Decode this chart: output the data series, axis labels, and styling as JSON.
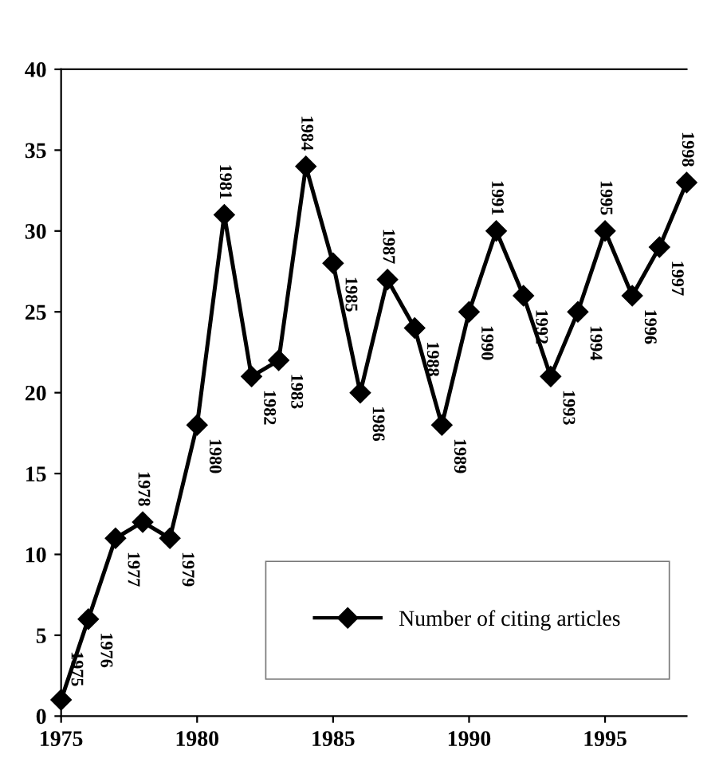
{
  "chart_data": {
    "type": "line",
    "x": [
      1975,
      1976,
      1977,
      1978,
      1979,
      1980,
      1981,
      1982,
      1983,
      1984,
      1985,
      1986,
      1987,
      1988,
      1989,
      1990,
      1991,
      1992,
      1993,
      1994,
      1995,
      1996,
      1997,
      1998
    ],
    "series": [
      {
        "name": "Number of citing articles",
        "color": "#000000",
        "values": [
          1,
          6,
          11,
          12,
          11,
          18,
          31,
          21,
          22,
          34,
          28,
          20,
          27,
          24,
          18,
          25,
          30,
          26,
          21,
          25,
          30,
          26,
          29,
          33
        ]
      }
    ],
    "annotations": [
      {
        "text": "1975",
        "x": 1975,
        "y": 1
      },
      {
        "text": "1976",
        "x": 1976,
        "y": 6
      },
      {
        "text": "1977",
        "x": 1977,
        "y": 11
      },
      {
        "text": "1978",
        "x": 1978,
        "y": 12
      },
      {
        "text": "1979",
        "x": 1979,
        "y": 11
      },
      {
        "text": "1980",
        "x": 1980,
        "y": 18
      },
      {
        "text": "1981",
        "x": 1981,
        "y": 31
      },
      {
        "text": "1982",
        "x": 1982,
        "y": 21
      },
      {
        "text": "1983",
        "x": 1983,
        "y": 22
      },
      {
        "text": "1984",
        "x": 1984,
        "y": 34
      },
      {
        "text": "1985",
        "x": 1985,
        "y": 28
      },
      {
        "text": "1986",
        "x": 1986,
        "y": 20
      },
      {
        "text": "1987",
        "x": 1987,
        "y": 27
      },
      {
        "text": "1988",
        "x": 1988,
        "y": 24
      },
      {
        "text": "1989",
        "x": 1989,
        "y": 18
      },
      {
        "text": "1990",
        "x": 1990,
        "y": 25
      },
      {
        "text": "1991",
        "x": 1991,
        "y": 30
      },
      {
        "text": "1992",
        "x": 1992,
        "y": 26
      },
      {
        "text": "1993",
        "x": 1993,
        "y": 21
      },
      {
        "text": "1994",
        "x": 1994,
        "y": 25
      },
      {
        "text": "1995",
        "x": 1995,
        "y": 30
      },
      {
        "text": "1996",
        "x": 1996,
        "y": 26
      },
      {
        "text": "1997",
        "x": 1997,
        "y": 29
      },
      {
        "text": "1998",
        "x": 1998,
        "y": 33
      }
    ],
    "xlim": [
      1975,
      1998
    ],
    "xticks": [
      1975,
      1980,
      1985,
      1990,
      1995
    ],
    "ylim": [
      0,
      40
    ],
    "yticks": [
      0,
      5,
      10,
      15,
      20,
      25,
      30,
      35,
      40
    ],
    "marker": "diamond",
    "line_style": "solid",
    "legend": "bottom right",
    "grid": false
  }
}
